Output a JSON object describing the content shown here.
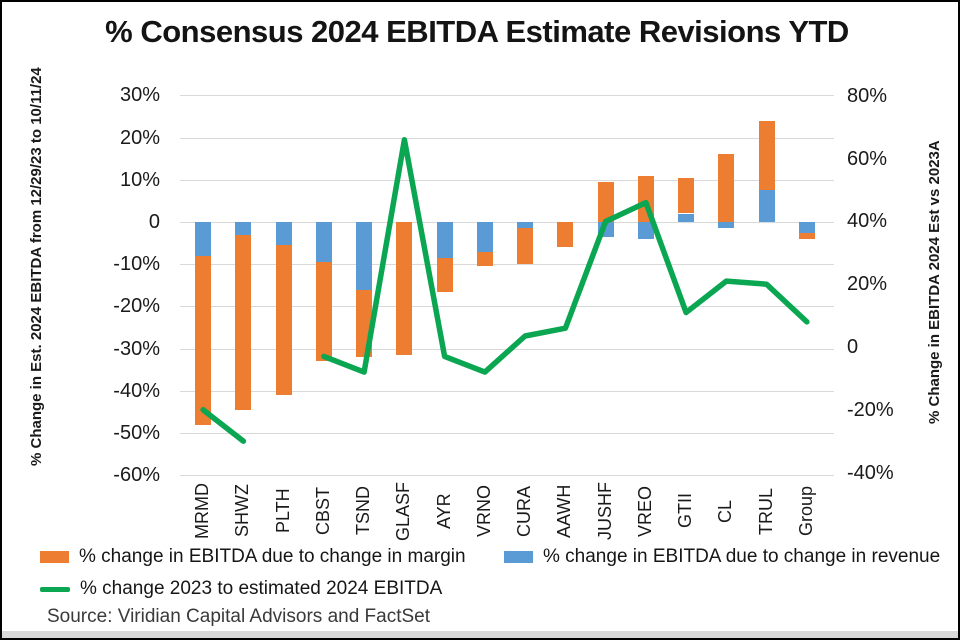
{
  "title": "% Consensus 2024 EBITDA Estimate Revisions YTD",
  "source": "Source: Viridian Capital Advisors and FactSet",
  "legend": {
    "margin": "% change in EBITDA due to change in margin",
    "revenue": "% change in EBITDA due to change in revenue",
    "line": "% change 2023 to estimated 2024 EBITDA"
  },
  "colors": {
    "margin": "#ED7D31",
    "revenue": "#5B9BD5",
    "line": "#0AA652",
    "grid": "#D9D9D9"
  },
  "chart_data": {
    "type": "combo: stacked bar + line",
    "categories": [
      "MRMD",
      "SHWZ",
      "PLTH",
      "CBST",
      "TSND",
      "GLASF",
      "AYR",
      "VRNO",
      "CURA",
      "AAWH",
      "JUSHF",
      "VREO",
      "GTII",
      "CL",
      "TRUL",
      "Group"
    ],
    "series": [
      {
        "name": "% change in EBITDA due to change in margin",
        "type": "bar",
        "axis": "left",
        "color": "#ED7D31",
        "values": [
          -40,
          -41.5,
          -35.5,
          -23.5,
          -16,
          -31.5,
          -8,
          -3.5,
          -8.5,
          -6,
          9.5,
          11,
          8.5,
          16,
          16.5,
          -1.5
        ]
      },
      {
        "name": "% change in EBITDA due to change in revenue",
        "type": "bar",
        "axis": "left",
        "color": "#5B9BD5",
        "values": [
          -8,
          -3,
          -5.5,
          -9.5,
          -16,
          0,
          -8.5,
          -7,
          -1.5,
          0,
          -3.5,
          -4,
          2,
          -1.5,
          7.5,
          -2.5
        ]
      },
      {
        "name": "% change 2023 to estimated 2024 EBITDA",
        "type": "line",
        "axis": "right",
        "color": "#0AA652",
        "values": [
          -20,
          -30,
          null,
          -3,
          -8,
          66,
          -3,
          -8,
          3.5,
          6,
          40,
          46,
          11,
          21,
          20,
          8
        ]
      }
    ],
    "left_axis": {
      "label": "% Change in Est. 2024 EBITDA from 12/29/23 to 10/11/24",
      "ticks": [
        "30%",
        "20%",
        "10%",
        "0",
        "-10%",
        "-20%",
        "-30%",
        "-40%",
        "-50%",
        "-60%"
      ],
      "tick_values": [
        30,
        20,
        10,
        0,
        -10,
        -20,
        -30,
        -40,
        -50,
        -60
      ],
      "range": [
        -60,
        30
      ]
    },
    "right_axis": {
      "label": "% Change in EBITDA 2024 Est vs 2023A",
      "ticks": [
        "80%",
        "60%",
        "40%",
        "20%",
        "0",
        "-20%",
        "-40%"
      ],
      "tick_values": [
        80,
        60,
        40,
        20,
        0,
        -20,
        -40
      ],
      "range": [
        -40,
        80
      ]
    },
    "grid": true,
    "legend_position": "bottom"
  }
}
